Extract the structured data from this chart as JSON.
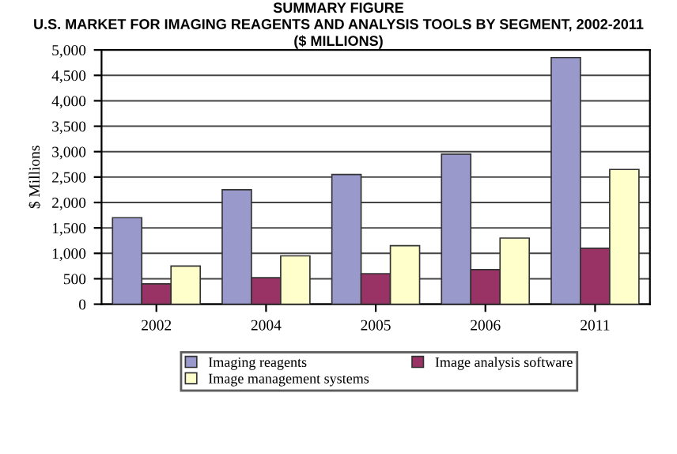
{
  "chart_data": {
    "type": "bar",
    "title": "SUMMARY FIGURE\nU.S. MARKET FOR IMAGING REAGENTS AND ANALYSIS TOOLS BY SEGMENT, 2002-2011\n($ MILLIONS)",
    "ylabel": "$ Millions",
    "categories": [
      "2002",
      "2004",
      "2005",
      "2006",
      "2011"
    ],
    "series": [
      {
        "name": "Imaging reagents",
        "color": "#9999cc",
        "values": [
          1700,
          2250,
          2550,
          2950,
          4850
        ]
      },
      {
        "name": "Image analysis software",
        "color": "#993366",
        "values": [
          400,
          520,
          600,
          680,
          1100
        ]
      },
      {
        "name": "Image management systems",
        "color": "#ffffcc",
        "values": [
          750,
          950,
          1150,
          1300,
          2650
        ]
      }
    ],
    "ylim": [
      0,
      5000
    ],
    "yticks": [
      {
        "value": 0,
        "label": "0"
      },
      {
        "value": 500,
        "label": "500"
      },
      {
        "value": 1000,
        "label": "1,000"
      },
      {
        "value": 1500,
        "label": "1,500"
      },
      {
        "value": 2000,
        "label": "2,000"
      },
      {
        "value": 2500,
        "label": "2,500"
      },
      {
        "value": 3000,
        "label": "3,000"
      },
      {
        "value": 3500,
        "label": "3,500"
      },
      {
        "value": 4000,
        "label": "4,000"
      },
      {
        "value": 4500,
        "label": "4,500"
      },
      {
        "value": 5000,
        "label": "5,000"
      }
    ],
    "grid": "y",
    "legend": "bottom"
  }
}
